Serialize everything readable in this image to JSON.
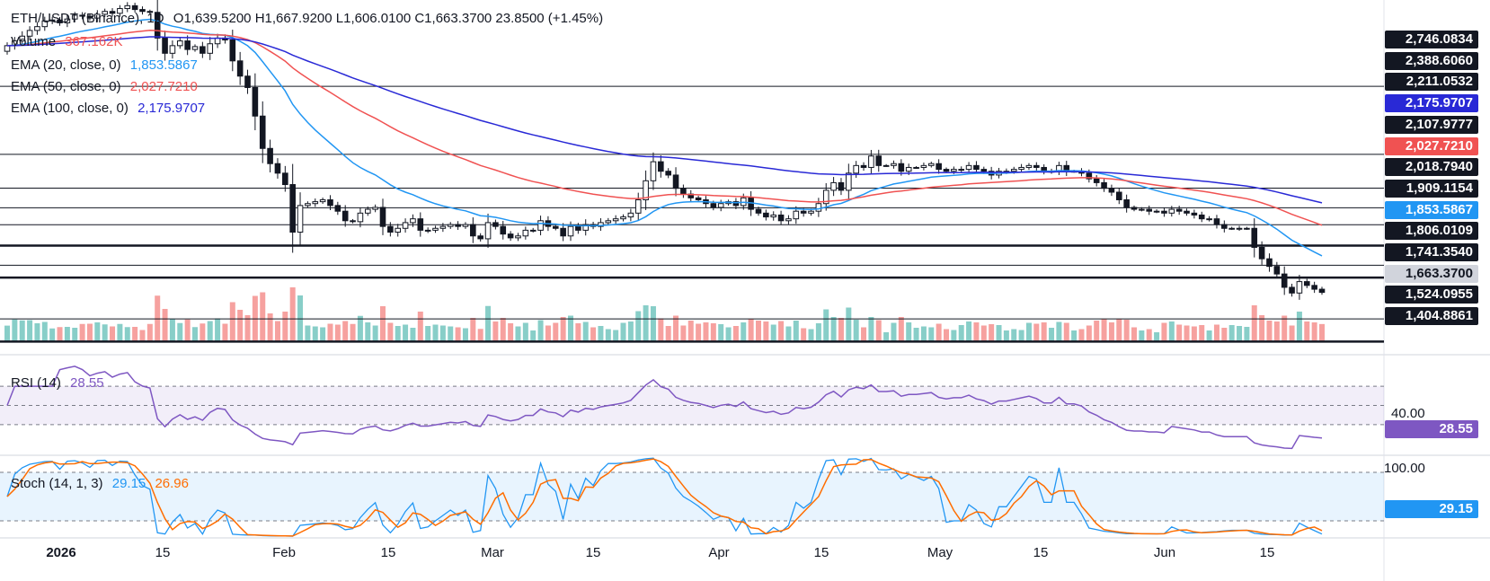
{
  "header": {
    "symbol": "ETH/USDT (Binance), 1D",
    "ohlc": "O1,639.5200  H1,667.9200  L1,606.0100  C1,663.3700  23.8500 (+1.45%)"
  },
  "legend": {
    "volume": {
      "label": "Volume",
      "value": "367.162K"
    },
    "ema20": {
      "label": "EMA (20, close, 0)",
      "value": "1,853.5867",
      "color": "#2196f3"
    },
    "ema50": {
      "label": "EMA (50, close, 0)",
      "value": "2,027.7210",
      "color": "#f05252"
    },
    "ema100": {
      "label": "EMA (100, close, 0)",
      "value": "2,175.9707",
      "color": "#2929d6"
    }
  },
  "rsi": {
    "label": "RSI (14)",
    "value": "28.55",
    "level_label": "40.00",
    "color": "#7e57c2"
  },
  "stoch": {
    "label": "Stoch (14, 1, 3)",
    "k": "29.15",
    "d": "26.96",
    "level_label": "100.00",
    "k_color": "#2196f3",
    "d_color": "#ff6d00"
  },
  "price_axis": [
    {
      "label": "2,746.0834",
      "type": "level"
    },
    {
      "label": "2,388.6060",
      "type": "level"
    },
    {
      "label": "2,211.0532",
      "type": "level"
    },
    {
      "label": "2,175.9707",
      "type": "ema100"
    },
    {
      "label": "2,107.9777",
      "type": "level"
    },
    {
      "label": "2,027.7210",
      "type": "ema50"
    },
    {
      "label": "2,018.7940",
      "type": "level"
    },
    {
      "label": "1,909.1154",
      "type": "level"
    },
    {
      "label": "1,853.5867",
      "type": "ema20"
    },
    {
      "label": "1,806.0109",
      "type": "level"
    },
    {
      "label": "1,741.3540",
      "type": "level"
    },
    {
      "label": "1,663.3700",
      "type": "last"
    },
    {
      "label": "1,524.0955",
      "type": "level"
    },
    {
      "label": "1,404.8861",
      "type": "level"
    }
  ],
  "date_axis": [
    {
      "label": "2026",
      "bold": true
    },
    {
      "label": "15"
    },
    {
      "label": "Feb"
    },
    {
      "label": "15"
    },
    {
      "label": "Mar"
    },
    {
      "label": "15"
    },
    {
      "label": "Apr"
    },
    {
      "label": "15"
    },
    {
      "label": "May"
    },
    {
      "label": "15"
    },
    {
      "label": "Jun"
    },
    {
      "label": "15"
    }
  ],
  "chart_data": {
    "type": "candlestick",
    "start": "2026-01-01",
    "levels": [
      2746.0834,
      2388.606,
      2211.0532,
      2107.9777,
      2018.794,
      1909.1154,
      1806.0109,
      1741.354,
      1524.0955,
      1404.8861
    ],
    "bold_levels": [
      1909.1154,
      1741.354,
      1404.8861
    ],
    "closes": [
      2960,
      2985,
      3010,
      3040,
      3060,
      3090,
      3095,
      3080,
      3100,
      3120,
      3115,
      3105,
      3125,
      3140,
      3130,
      3155,
      3170,
      3150,
      3140,
      3135,
      3000,
      2920,
      2960,
      2985,
      2940,
      2955,
      2920,
      2970,
      3000,
      2990,
      2880,
      2800,
      2740,
      2590,
      2420,
      2340,
      2290,
      2230,
      1980,
      2120,
      2130,
      2140,
      2150,
      2120,
      2090,
      2040,
      2035,
      2080,
      2100,
      2110,
      2010,
      1980,
      2000,
      2030,
      2050,
      1990,
      1990,
      2000,
      2010,
      2020,
      2010,
      2020,
      1960,
      1945,
      2030,
      2010,
      1970,
      1950,
      1960,
      1990,
      1990,
      2040,
      2010,
      2000,
      1960,
      2010,
      1990,
      2020,
      2010,
      2030,
      2040,
      2050,
      2060,
      2080,
      2150,
      2250,
      2350,
      2300,
      2280,
      2210,
      2180,
      2160,
      2150,
      2130,
      2110,
      2130,
      2140,
      2120,
      2160,
      2100,
      2080,
      2060,
      2070,
      2040,
      2050,
      2090,
      2080,
      2090,
      2130,
      2200,
      2240,
      2200,
      2290,
      2330,
      2320,
      2380,
      2330,
      2330,
      2340,
      2300,
      2320,
      2320,
      2330,
      2340,
      2310,
      2300,
      2310,
      2310,
      2330,
      2310,
      2300,
      2280,
      2300,
      2300,
      2310,
      2320,
      2330,
      2320,
      2300,
      2300,
      2330,
      2300,
      2300,
      2290,
      2260,
      2240,
      2210,
      2190,
      2150,
      2110,
      2100,
      2100,
      2090,
      2090,
      2080,
      2100,
      2090,
      2080,
      2070,
      2050,
      2050,
      2020,
      2000,
      2000,
      2000,
      2000,
      1900,
      1840,
      1800,
      1760,
      1690,
      1660,
      1720,
      1700,
      1680,
      1663.37
    ],
    "price_range": [
      1350,
      3200
    ],
    "rsi_levels": [
      70,
      50,
      30
    ],
    "stoch_levels": [
      80,
      20
    ],
    "last_close": 1663.37
  }
}
